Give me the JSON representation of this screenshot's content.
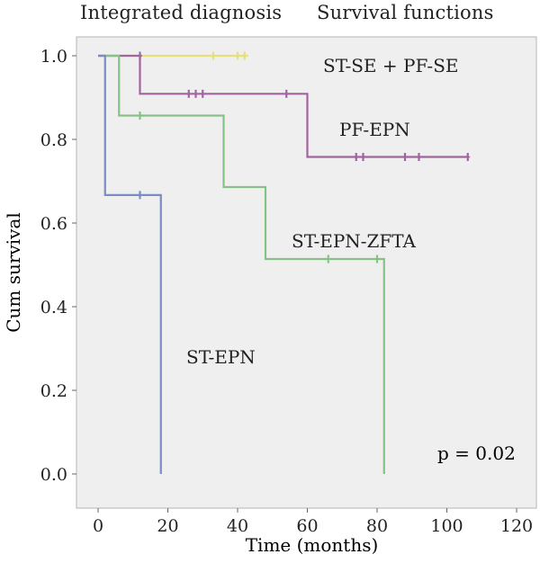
{
  "header": {
    "left": "Integrated diagnosis",
    "right": "Survival functions"
  },
  "chart_data": {
    "type": "line",
    "subtype": "kaplan-meier step",
    "title": "Survival functions",
    "xlabel": "Time (months)",
    "ylabel": "Cum survival",
    "xlim": [
      -10,
      125
    ],
    "ylim": [
      -0.04,
      1.05
    ],
    "x_ticks": [
      "0",
      "20",
      "40",
      "60",
      "80",
      "100",
      "120"
    ],
    "y_ticks": [
      "0.0",
      "0.2",
      "0.4",
      "0.6",
      "0.8",
      "1.0"
    ],
    "grid": false,
    "background": "#efefef",
    "annotation": "p = 0.02",
    "series": [
      {
        "name": "ST-SE + PF-SE",
        "color": "#e6e07a",
        "steps": [
          [
            0,
            1.0
          ],
          [
            42,
            1.0
          ]
        ],
        "end": 43,
        "censored": [
          [
            33,
            1.0
          ],
          [
            40,
            1.0
          ],
          [
            42,
            1.0
          ]
        ]
      },
      {
        "name": "PF-EPN",
        "color": "#a0649e",
        "steps": [
          [
            0,
            1.0
          ],
          [
            12,
            0.909
          ],
          [
            60,
            0.758
          ]
        ],
        "end": 106,
        "censored": [
          [
            12,
            1.0
          ],
          [
            26,
            0.909
          ],
          [
            28,
            0.909
          ],
          [
            30,
            0.909
          ],
          [
            54,
            0.909
          ],
          [
            74,
            0.758
          ],
          [
            76,
            0.758
          ],
          [
            88,
            0.758
          ],
          [
            92,
            0.758
          ],
          [
            106,
            0.758
          ]
        ]
      },
      {
        "name": "ST-EPN-ZFTA",
        "color": "#86c286",
        "steps": [
          [
            0,
            1.0
          ],
          [
            6,
            0.857
          ],
          [
            36,
            0.686
          ],
          [
            48,
            0.514
          ],
          [
            82,
            0.0
          ]
        ],
        "end": 82,
        "censored": [
          [
            12,
            0.857
          ],
          [
            66,
            0.514
          ],
          [
            80,
            0.514
          ]
        ]
      },
      {
        "name": "ST-EPN",
        "color": "#7b8cc4",
        "steps": [
          [
            0,
            1.0
          ],
          [
            2,
            0.667
          ],
          [
            18,
            0.0
          ]
        ],
        "end": 18,
        "censored": [
          [
            12,
            0.667
          ]
        ]
      }
    ]
  }
}
